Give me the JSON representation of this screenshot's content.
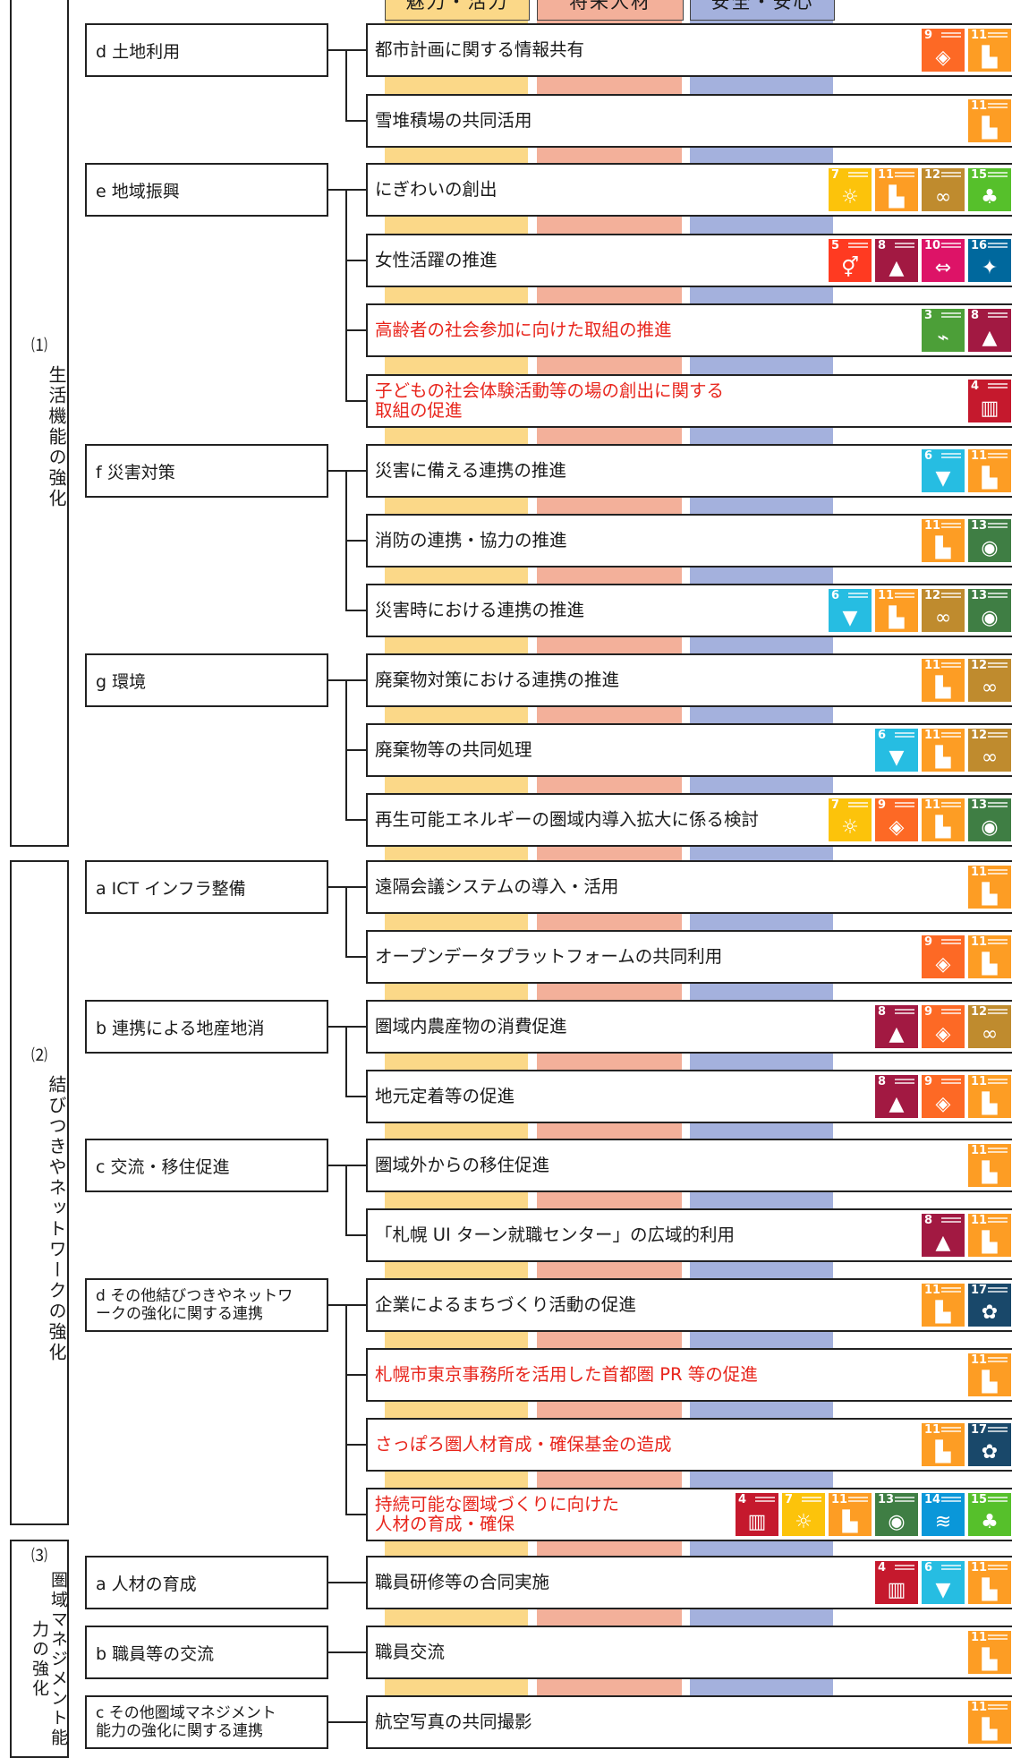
{
  "column_headers": [
    "魅力・活力",
    "将来人材",
    "安全・安心"
  ],
  "sdg_colors": {
    "3": "#4c9f38",
    "4": "#c5192d",
    "5": "#ff3a21",
    "6": "#26bde2",
    "7": "#fcc30b",
    "8": "#a21942",
    "9": "#fd6925",
    "10": "#dd1367",
    "11": "#fd9d24",
    "12": "#bf8b2e",
    "13": "#3f7e44",
    "14": "#0a97d9",
    "15": "#56c02b",
    "16": "#00689d",
    "17": "#19486a"
  },
  "sdg_glyphs": {
    "3": "⌁",
    "4": "▥",
    "5": "⚥",
    "6": "▼",
    "7": "☼",
    "8": "▲",
    "9": "◈",
    "10": "⇔",
    "11": "▙",
    "12": "∞",
    "13": "◉",
    "14": "≋",
    "15": "♣",
    "16": "✦",
    "17": "✿"
  },
  "sections": [
    {
      "num": "⑴",
      "title": "生活機能の強化"
    },
    {
      "num": "⑵",
      "title": "結びつきやネットワークの強化"
    },
    {
      "num": "⑶",
      "title": "圏域マネジメント能力の強化"
    }
  ],
  "categories": [
    {
      "label": "d 土地利用"
    },
    {
      "label": "e 地域振興"
    },
    {
      "label": "f 災害対策"
    },
    {
      "label": "g 環境"
    },
    {
      "label": "a ICT インフラ整備"
    },
    {
      "label": "b 連携による地産地消"
    },
    {
      "label": "c 交流・移住促進"
    },
    {
      "label": "d その他結びつきやネットワ\nークの強化に関する連携"
    },
    {
      "label": "a 人材の育成"
    },
    {
      "label": "b 職員等の交流"
    },
    {
      "label": "c その他圏域マネジメント\n能力の強化に関する連携"
    }
  ],
  "items": [
    {
      "label": "都市計画に関する情報共有",
      "red": false,
      "sdgs": [
        9,
        11
      ]
    },
    {
      "label": "雪堆積場の共同活用",
      "red": false,
      "sdgs": [
        11
      ]
    },
    {
      "label": "にぎわいの創出",
      "red": false,
      "sdgs": [
        7,
        11,
        12,
        15
      ]
    },
    {
      "label": "女性活躍の推進",
      "red": false,
      "sdgs": [
        5,
        8,
        10,
        16
      ]
    },
    {
      "label": "高齢者の社会参加に向けた取組の推進",
      "red": true,
      "sdgs": [
        3,
        8
      ]
    },
    {
      "label": "子どもの社会体験活動等の場の創出に関する\n取組の促進",
      "red": true,
      "sdgs": [
        4
      ]
    },
    {
      "label": "災害に備える連携の推進",
      "red": false,
      "sdgs": [
        6,
        11
      ]
    },
    {
      "label": "消防の連携・協力の推進",
      "red": false,
      "sdgs": [
        11,
        13
      ]
    },
    {
      "label": "災害時における連携の推進",
      "red": false,
      "sdgs": [
        6,
        11,
        12,
        13
      ]
    },
    {
      "label": "廃棄物対策における連携の推進",
      "red": false,
      "sdgs": [
        11,
        12
      ]
    },
    {
      "label": "廃棄物等の共同処理",
      "red": false,
      "sdgs": [
        6,
        11,
        12
      ]
    },
    {
      "label": "再生可能エネルギーの圏域内導入拡大に係る検討",
      "red": false,
      "sdgs": [
        7,
        9,
        11,
        13
      ]
    },
    {
      "label": "遠隔会議システムの導入・活用",
      "red": false,
      "sdgs": [
        11
      ]
    },
    {
      "label": "オープンデータプラットフォームの共同利用",
      "red": false,
      "sdgs": [
        9,
        11
      ]
    },
    {
      "label": "圏域内農産物の消費促進",
      "red": false,
      "sdgs": [
        8,
        9,
        12
      ]
    },
    {
      "label": "地元定着等の促進",
      "red": false,
      "sdgs": [
        8,
        9,
        11
      ]
    },
    {
      "label": "圏域外からの移住促進",
      "red": false,
      "sdgs": [
        11
      ]
    },
    {
      "label": "「札幌 UI ターン就職センター」の広域的利用",
      "red": false,
      "sdgs": [
        8,
        11
      ]
    },
    {
      "label": "企業によるまちづくり活動の促進",
      "red": false,
      "sdgs": [
        11,
        17
      ]
    },
    {
      "label": "札幌市東京事務所を活用した首都圏 PR 等の促進",
      "red": true,
      "sdgs": [
        11
      ]
    },
    {
      "label": "さっぽろ圏人材育成・確保基金の造成",
      "red": true,
      "sdgs": [
        11,
        17
      ]
    },
    {
      "label": "持続可能な圏域づくりに向けた\n人材の育成・確保",
      "red": true,
      "sdgs": [
        4,
        7,
        11,
        13,
        14,
        15
      ]
    },
    {
      "label": "職員研修等の合同実施",
      "red": false,
      "sdgs": [
        4,
        6,
        11
      ]
    },
    {
      "label": "職員交流",
      "red": false,
      "sdgs": [
        11
      ]
    },
    {
      "label": "航空写真の共同撮影",
      "red": false,
      "sdgs": [
        11
      ]
    }
  ]
}
